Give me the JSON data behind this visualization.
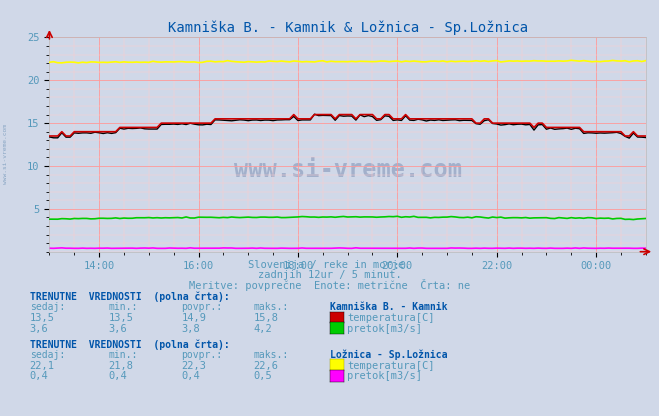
{
  "title": "Kamniška B. - Kamnik & Ložnica - Sp.Ložnica",
  "bg_color": "#d0d8e8",
  "plot_bg_color": "#d0d8e8",
  "grid_color_major": "#ff9999",
  "grid_color_minor": "#ffcccc",
  "tick_color": "#5599bb",
  "title_color": "#0055aa",
  "text_color": "#5599bb",
  "x_tick_labels_actual": [
    "14:00",
    "16:00",
    "18:00",
    "20:00",
    "22:00",
    "00:00"
  ],
  "x_ticks_actual": [
    12,
    36,
    60,
    84,
    108,
    132
  ],
  "y_min": 0,
  "y_max": 25,
  "subtitle1": "Slovenija / reke in morje.",
  "subtitle2": "zadnjih 12ur / 5 minut.",
  "subtitle3": "Meritve: povprečne  Enote: metrične  Črta: ne",
  "watermark": "www.si-vreme.com",
  "station1_name": "Kamniška B. - Kamnik",
  "station1_temp_color": "#cc0000",
  "station1_flow_color": "#00cc00",
  "station1_black_color": "#000000",
  "station2_name": "Ložnica - Sp.Ložnica",
  "station2_temp_color": "#ffff00",
  "station2_flow_color": "#ff00ff",
  "s1_temp_sedaj": "13,5",
  "s1_temp_min": "13,5",
  "s1_temp_povpr": "14,9",
  "s1_temp_maks": "15,8",
  "s1_flow_sedaj": "3,6",
  "s1_flow_min": "3,6",
  "s1_flow_povpr": "3,8",
  "s1_flow_maks": "4,2",
  "s2_temp_sedaj": "22,1",
  "s2_temp_min": "21,8",
  "s2_temp_povpr": "22,3",
  "s2_temp_maks": "22,6",
  "s2_flow_sedaj": "0,4",
  "s2_flow_min": "0,4",
  "s2_flow_povpr": "0,4",
  "s2_flow_maks": "0,5",
  "bold_color": "#0055aa",
  "normal_color": "#5599bb",
  "fs_label": 7.5,
  "fs_header": 7.0,
  "fs_data": 7.5
}
